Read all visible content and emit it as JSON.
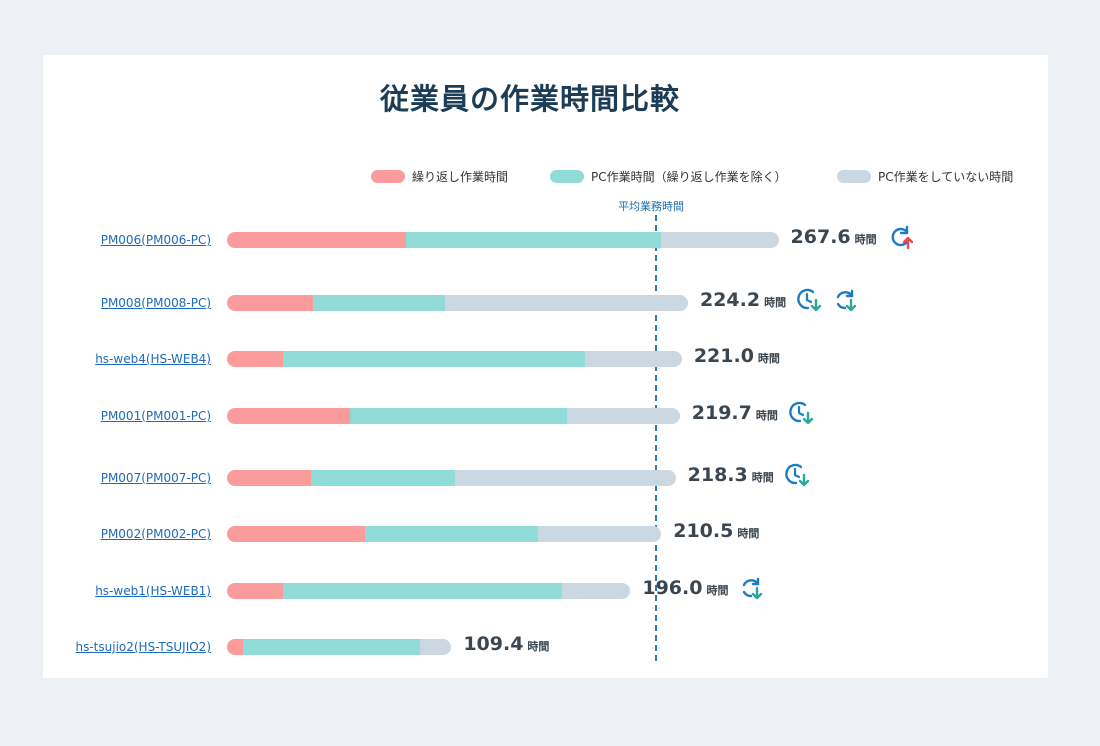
{
  "title": "従業員の作業時間比較",
  "legend": {
    "repeat": "繰り返し作業時間",
    "pc": "PC作業時間（繰り返し作業を除く）",
    "none": "PC作業をしていない時間"
  },
  "average_label": "平均業務時間",
  "unit_label": "時間",
  "colors": {
    "repeat": "#fb9b9b",
    "pc": "#91dbd8",
    "none": "#cbd7e1",
    "link": "#1e6bb8",
    "average_line": "#2a79b5"
  },
  "chart_data": {
    "type": "bar",
    "orientation": "horizontal",
    "stacked": true,
    "title": "従業員の作業時間比較",
    "categories": [
      "PM006(PM006-PC)",
      "PM008(PM008-PC)",
      "hs-web4(HS-WEB4)",
      "PM001(PM001-PC)",
      "PM007(PM007-PC)",
      "PM002(PM002-PC)",
      "hs-web1(HS-WEB1)",
      "hs-tsujio2(HS-TSUJIO2)"
    ],
    "series": [
      {
        "name": "繰り返し作業時間",
        "values": [
          87,
          42,
          27,
          60,
          41,
          67,
          27,
          8
        ]
      },
      {
        "name": "PC作業時間（繰り返し作業を除く）",
        "values": [
          124,
          64,
          147,
          105,
          70,
          84,
          136,
          86
        ]
      },
      {
        "name": "PC作業をしていない時間",
        "values": [
          57,
          118,
          47,
          55,
          107,
          60,
          33,
          15
        ]
      }
    ],
    "totals": [
      "267.6",
      "224.2",
      "221.0",
      "219.7",
      "218.3",
      "210.5",
      "196.0",
      "109.4"
    ],
    "average_hours": 208,
    "legend_position": "top-right",
    "grid": false
  },
  "rows": [
    {
      "icons": [
        "refresh-up-icon"
      ]
    },
    {
      "icons": [
        "clock-down-icon",
        "refresh-down-icon"
      ]
    },
    {
      "icons": []
    },
    {
      "icons": [
        "clock-down-icon"
      ]
    },
    {
      "icons": [
        "clock-down-icon"
      ]
    },
    {
      "icons": []
    },
    {
      "icons": [
        "refresh-down-icon"
      ]
    },
    {
      "icons": []
    }
  ]
}
